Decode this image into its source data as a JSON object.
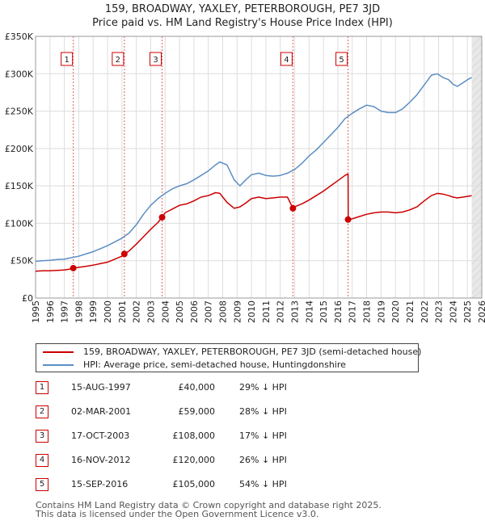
{
  "chart_data": {
    "type": "line",
    "title": "159, BROADWAY, YAXLEY, PETERBOROUGH, PE7 3JD",
    "subtitle": "Price paid vs. HM Land Registry's House Price Index (HPI)",
    "xlabel": "",
    "ylabel": "",
    "xlim": [
      1995,
      2026
    ],
    "ylim": [
      0,
      350000
    ],
    "y_ticks": [
      0,
      50000,
      100000,
      150000,
      200000,
      250000,
      300000,
      350000
    ],
    "y_tick_labels": [
      "£0",
      "£50K",
      "£100K",
      "£150K",
      "£200K",
      "£250K",
      "£300K",
      "£350K"
    ],
    "x_ticks": [
      1995,
      1996,
      1997,
      1998,
      1999,
      2000,
      2001,
      2002,
      2003,
      2004,
      2005,
      2006,
      2007,
      2008,
      2009,
      2010,
      2011,
      2012,
      2013,
      2014,
      2015,
      2016,
      2017,
      2018,
      2019,
      2020,
      2021,
      2022,
      2023,
      2024,
      2025,
      2026
    ],
    "x_tick_labels": [
      "1995",
      "1996",
      "1997",
      "1998",
      "1999",
      "2000",
      "2001",
      "2002",
      "2003",
      "2004",
      "2005",
      "2006",
      "2007",
      "2008",
      "2009",
      "2010",
      "2011",
      "2012",
      "2013",
      "2014",
      "2015",
      "2016",
      "2017",
      "2018",
      "2019",
      "2020",
      "2021",
      "2022",
      "2023",
      "2024",
      "2025",
      "2026"
    ],
    "series": [
      {
        "name": "159, BROADWAY, YAXLEY, PETERBOROUGH, PE7 3JD (semi-detached house)",
        "color": "#cc0000",
        "x": [
          1995.0,
          1995.5,
          1996.0,
          1996.5,
          1997.0,
          1997.5,
          1997.62,
          1998.0,
          1998.5,
          1999.0,
          1999.5,
          2000.0,
          2000.5,
          2001.0,
          2001.17,
          2001.5,
          2002.0,
          2002.5,
          2003.0,
          2003.5,
          2003.79,
          2004.0,
          2004.5,
          2005.0,
          2005.5,
          2006.0,
          2006.5,
          2007.0,
          2007.5,
          2007.8,
          2008.3,
          2008.8,
          2009.2,
          2009.6,
          2010.0,
          2010.5,
          2011.0,
          2011.5,
          2012.0,
          2012.5,
          2012.88,
          2013.0,
          2013.5,
          2014.0,
          2014.5,
          2015.0,
          2015.5,
          2016.0,
          2016.5,
          2016.71,
          2016.72,
          2017.0,
          2017.5,
          2018.0,
          2018.5,
          2019.0,
          2019.5,
          2020.0,
          2020.5,
          2021.0,
          2021.5,
          2022.0,
          2022.5,
          2022.9,
          2023.3,
          2023.7,
          2024.0,
          2024.3,
          2024.7,
          2025.0,
          2025.3
        ],
        "values": [
          36000,
          36500,
          36500,
          37000,
          37500,
          39000,
          40000,
          41000,
          42500,
          44000,
          46000,
          48000,
          52000,
          56000,
          59000,
          63000,
          72000,
          82000,
          92000,
          101000,
          108000,
          114000,
          119000,
          124000,
          126000,
          130000,
          135000,
          137000,
          141000,
          140000,
          128000,
          120000,
          122000,
          127000,
          133000,
          135000,
          133000,
          134000,
          135000,
          135000,
          120000,
          122000,
          126000,
          131000,
          137000,
          143000,
          150000,
          157000,
          164000,
          166000,
          105000,
          106000,
          109000,
          112000,
          114000,
          115000,
          115000,
          114000,
          115000,
          118000,
          122000,
          130000,
          137000,
          140000,
          139000,
          137000,
          135000,
          134000,
          135000,
          136000,
          137000
        ]
      },
      {
        "name": "HPI: Average price, semi-detached house, Huntingdonshire",
        "color": "#5b8ec4",
        "x": [
          1995.0,
          1995.5,
          1996.0,
          1996.5,
          1997.0,
          1997.5,
          1998.0,
          1998.5,
          1999.0,
          1999.5,
          2000.0,
          2000.5,
          2001.0,
          2001.5,
          2002.0,
          2002.5,
          2003.0,
          2003.5,
          2004.0,
          2004.5,
          2005.0,
          2005.5,
          2006.0,
          2006.5,
          2007.0,
          2007.5,
          2007.8,
          2008.3,
          2008.8,
          2009.2,
          2009.6,
          2010.0,
          2010.5,
          2011.0,
          2011.5,
          2012.0,
          2012.5,
          2013.0,
          2013.5,
          2014.0,
          2014.5,
          2015.0,
          2015.5,
          2016.0,
          2016.5,
          2017.0,
          2017.5,
          2018.0,
          2018.5,
          2019.0,
          2019.5,
          2020.0,
          2020.5,
          2021.0,
          2021.5,
          2022.0,
          2022.5,
          2022.9,
          2023.3,
          2023.7,
          2024.0,
          2024.3,
          2024.7,
          2025.0,
          2025.3
        ],
        "values": [
          49000,
          50000,
          50500,
          51500,
          52000,
          54000,
          56000,
          59000,
          62000,
          66000,
          70000,
          75000,
          80000,
          87000,
          98000,
          112000,
          124000,
          133000,
          140000,
          146000,
          150000,
          153000,
          158000,
          164000,
          170000,
          178000,
          182000,
          178000,
          158000,
          150000,
          158000,
          165000,
          167000,
          164000,
          163000,
          164000,
          167000,
          172000,
          180000,
          190000,
          198000,
          208000,
          218000,
          228000,
          240000,
          247000,
          253000,
          258000,
          256000,
          250000,
          248000,
          248000,
          253000,
          262000,
          272000,
          285000,
          298000,
          300000,
          295000,
          292000,
          286000,
          283000,
          288000,
          292000,
          295000
        ]
      }
    ],
    "sale_markers": [
      {
        "label": "1",
        "x": 1997.62,
        "value": 40000
      },
      {
        "label": "2",
        "x": 2001.17,
        "value": 59000
      },
      {
        "label": "3",
        "x": 2003.79,
        "value": 108000
      },
      {
        "label": "4",
        "x": 2012.88,
        "value": 120000
      },
      {
        "label": "5",
        "x": 2016.71,
        "value": 105000
      }
    ],
    "forecast_from": 2025.3
  },
  "legend": {
    "property_label": "159, BROADWAY, YAXLEY, PETERBOROUGH, PE7 3JD (semi-detached house)",
    "hpi_label": "HPI: Average price, semi-detached house, Huntingdonshire"
  },
  "sales": [
    {
      "num": "1",
      "date": "15-AUG-1997",
      "price": "£40,000",
      "hpi": "29% ↓ HPI"
    },
    {
      "num": "2",
      "date": "02-MAR-2001",
      "price": "£59,000",
      "hpi": "28% ↓ HPI"
    },
    {
      "num": "3",
      "date": "17-OCT-2003",
      "price": "£108,000",
      "hpi": "17% ↓ HPI"
    },
    {
      "num": "4",
      "date": "16-NOV-2012",
      "price": "£120,000",
      "hpi": "26% ↓ HPI"
    },
    {
      "num": "5",
      "date": "15-SEP-2016",
      "price": "£105,000",
      "hpi": "54% ↓ HPI"
    }
  ],
  "footer": {
    "line1": "Contains HM Land Registry data © Crown copyright and database right 2025.",
    "line2": "This data is licensed under the Open Government Licence v3.0."
  }
}
